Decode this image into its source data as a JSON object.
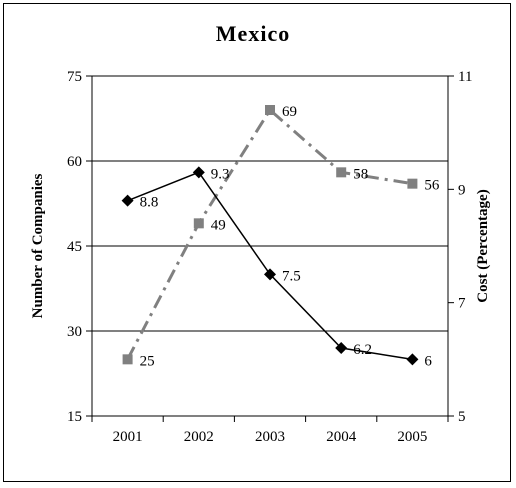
{
  "chart_data": {
    "type": "line",
    "title": "Mexico",
    "categories": [
      "2001",
      "2002",
      "2003",
      "2004",
      "2005"
    ],
    "y_left": {
      "label": "Number of Companies",
      "lim": [
        15,
        75
      ],
      "ticks": [
        15,
        30,
        45,
        60,
        75
      ],
      "tick_labels": [
        "15",
        "30",
        "45",
        "60",
        "75"
      ]
    },
    "y_right": {
      "label": "Cost (Percentage)",
      "lim": [
        5,
        11
      ],
      "ticks": [
        5,
        7,
        9,
        11
      ],
      "tick_labels": [
        "5",
        "7",
        "9",
        "11"
      ]
    },
    "grid": true,
    "legend": "none",
    "series": [
      {
        "axis": "left",
        "values": [
          25,
          49,
          69,
          58,
          56
        ],
        "labels": [
          "25",
          "49",
          "69",
          "58",
          "56"
        ],
        "style": "dash-dot",
        "marker": "square",
        "color": "#808080"
      },
      {
        "axis": "right",
        "values": [
          8.8,
          9.3,
          7.5,
          6.2,
          6
        ],
        "labels": [
          "8.8",
          "9.3",
          "7.5",
          "6.2",
          "6"
        ],
        "style": "solid",
        "marker": "diamond",
        "color": "#000000"
      }
    ]
  }
}
